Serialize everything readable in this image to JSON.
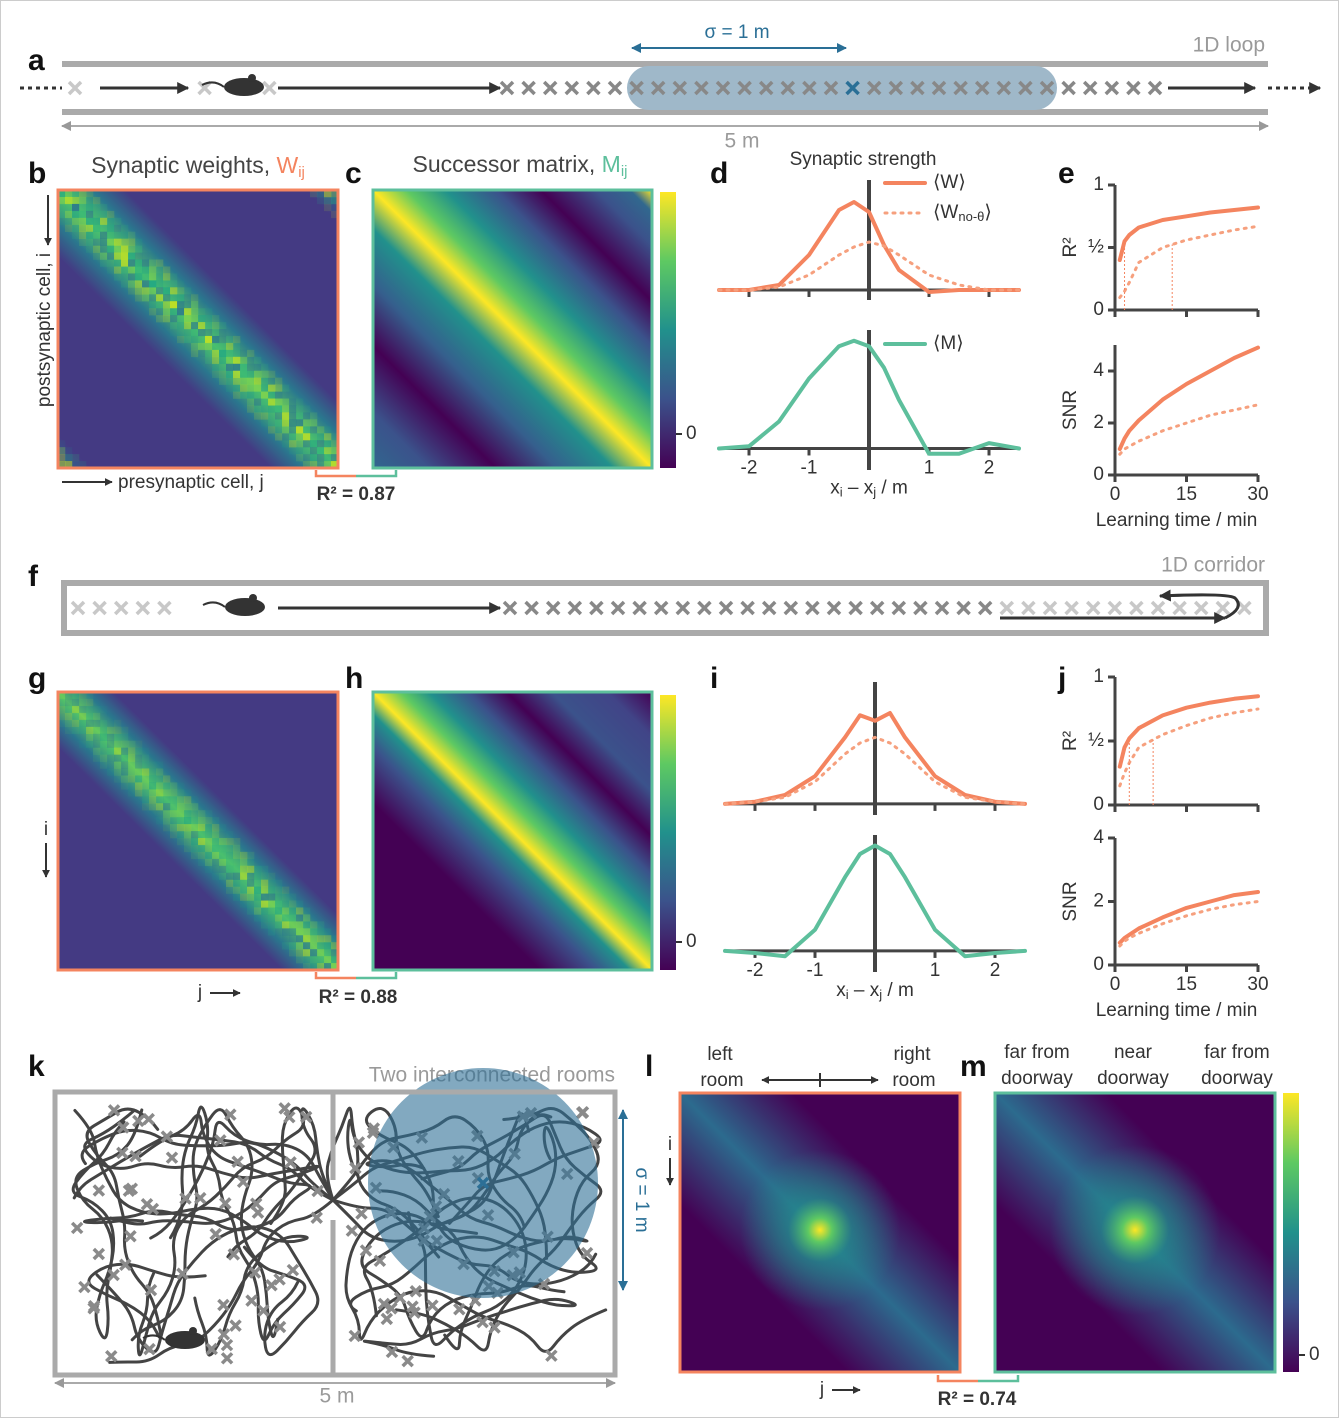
{
  "panels": {
    "a": {
      "label": "a",
      "title": "1D loop",
      "sigma": "σ = 1 m",
      "length": "5 m"
    },
    "b": {
      "label": "b",
      "title": [
        "Synaptic weights, ",
        "W",
        "ij"
      ],
      "ylabel": "postsynaptic cell, i",
      "xlabel": "presynaptic cell, j"
    },
    "c": {
      "label": "c",
      "title": [
        "Successor matrix, ",
        "M",
        "ij"
      ],
      "colorbar_tick": "0"
    },
    "bc": {
      "r2": "R² = 0.87"
    },
    "d": {
      "label": "d"
    },
    "e": {
      "label": "e"
    },
    "f": {
      "label": "f",
      "title": "1D corridor"
    },
    "g": {
      "label": "g",
      "ylabel": "i",
      "xlabel": "j"
    },
    "h": {
      "label": "h",
      "colorbar_tick": "0"
    },
    "gh": {
      "r2": "R² = 0.88"
    },
    "i": {
      "label": "i"
    },
    "j": {
      "label": "j"
    },
    "k": {
      "label": "k",
      "title": "Two interconnected rooms",
      "sigma": "σ = 1 m",
      "length": "5 m"
    },
    "l": {
      "label": "l",
      "left": [
        "left",
        "room"
      ],
      "right": [
        "right",
        "room"
      ],
      "ylabel": "i",
      "xlabel": "j"
    },
    "m": {
      "label": "m",
      "columns": [
        [
          "far from",
          "doorway"
        ],
        [
          "near",
          "doorway"
        ],
        [
          "far from",
          "doorway"
        ]
      ],
      "colorbar_tick": "0"
    },
    "lm": {
      "r2": "R² = 0.74"
    }
  },
  "chart_data": [
    {
      "type": "line",
      "title": "Synaptic strength",
      "x": [
        -2.5,
        -2,
        -1.5,
        -1,
        -0.5,
        -0.25,
        0,
        0.25,
        0.5,
        1,
        1.5,
        2,
        2.5
      ],
      "series": [
        {
          "name": [
            "⟨W⟩"
          ],
          "color": "#f4845f",
          "values": [
            0,
            0,
            0.05,
            0.35,
            0.8,
            0.88,
            0.78,
            0.45,
            0.2,
            -0.02,
            0,
            0,
            0
          ]
        },
        {
          "name": [
            "⟨W",
            "no-θ",
            "⟩"
          ],
          "color": "#f6a07e",
          "style": "dotted",
          "values": [
            0,
            0,
            0.03,
            0.15,
            0.35,
            0.43,
            0.48,
            0.44,
            0.35,
            0.15,
            0.05,
            0,
            0
          ]
        }
      ],
      "xlim": [
        -2.5,
        2.5
      ],
      "ylim": [
        -0.1,
        1.1
      ],
      "xticks": [
        -2,
        -1,
        1,
        2
      ],
      "zero_line": true
    },
    {
      "type": "line",
      "x": [
        -2.5,
        -2,
        -1.5,
        -1,
        -0.5,
        -0.25,
        0,
        0.25,
        0.5,
        1,
        1.5,
        2,
        2.5
      ],
      "series": [
        {
          "name": [
            "⟨M⟩"
          ],
          "color": "#5dbf9c",
          "values": [
            0,
            0.02,
            0.25,
            0.65,
            0.95,
            1.0,
            0.95,
            0.75,
            0.45,
            -0.05,
            -0.05,
            0.05,
            0
          ]
        }
      ],
      "xlim": [
        -2.5,
        2.5
      ],
      "ylim": [
        -0.2,
        1.1
      ],
      "xticks": [
        -2,
        -1,
        1,
        2
      ],
      "xlabel": [
        "x",
        "i",
        " – x",
        "j",
        " / m"
      ],
      "zero_line": true
    },
    {
      "type": "line",
      "x": [
        1,
        2,
        3,
        5,
        10,
        15,
        20,
        25,
        30
      ],
      "series": [
        {
          "color": "#f4845f",
          "values": [
            0.4,
            0.55,
            0.6,
            0.66,
            0.72,
            0.75,
            0.78,
            0.8,
            0.82
          ]
        },
        {
          "color": "#f6a07e",
          "style": "dotted",
          "values": [
            0.1,
            0.15,
            0.22,
            0.38,
            0.5,
            0.56,
            0.6,
            0.64,
            0.67
          ]
        }
      ],
      "xlim": [
        0,
        30
      ],
      "ylim": [
        0,
        1
      ],
      "xticks": [
        0,
        15,
        30
      ],
      "yticks": [
        0,
        {
          "value": 0.5,
          "label": "½"
        },
        1
      ],
      "ylabel": "R²",
      "markers": [
        2,
        12
      ]
    },
    {
      "type": "line",
      "x": [
        1,
        2,
        3,
        5,
        10,
        15,
        20,
        25,
        30
      ],
      "series": [
        {
          "color": "#f4845f",
          "values": [
            1.0,
            1.4,
            1.7,
            2.1,
            2.9,
            3.5,
            4.0,
            4.5,
            4.9
          ]
        },
        {
          "color": "#f6a07e",
          "style": "dotted",
          "values": [
            0.8,
            1.0,
            1.1,
            1.3,
            1.7,
            2.0,
            2.3,
            2.5,
            2.7
          ]
        }
      ],
      "xlim": [
        0,
        30
      ],
      "ylim": [
        0,
        5
      ],
      "xticks": [
        0,
        15,
        30
      ],
      "yticks": [
        0,
        2,
        4
      ],
      "ylabel": "SNR",
      "xlabel": [
        "Learning time / min"
      ]
    },
    {
      "type": "line",
      "x": [
        -2.5,
        -2,
        -1.5,
        -1,
        -0.5,
        -0.25,
        0,
        0.25,
        0.5,
        1,
        1.5,
        2,
        2.5
      ],
      "series": [
        {
          "color": "#f4845f",
          "values": [
            0,
            0.02,
            0.08,
            0.25,
            0.6,
            0.8,
            0.75,
            0.82,
            0.6,
            0.25,
            0.08,
            0.02,
            0
          ]
        },
        {
          "color": "#f6a07e",
          "style": "dotted",
          "values": [
            0,
            0.02,
            0.06,
            0.2,
            0.45,
            0.55,
            0.6,
            0.55,
            0.45,
            0.2,
            0.06,
            0.02,
            0
          ]
        }
      ],
      "xlim": [
        -2.5,
        2.5
      ],
      "ylim": [
        -0.1,
        1.1
      ],
      "xticks": [
        -2,
        -1,
        1,
        2
      ],
      "zero_line": true
    },
    {
      "type": "line",
      "x": [
        -2.5,
        -2,
        -1.5,
        -1,
        -0.5,
        -0.25,
        0,
        0.25,
        0.5,
        1,
        1.5,
        2,
        2.5
      ],
      "series": [
        {
          "color": "#5dbf9c",
          "values": [
            0,
            -0.02,
            -0.05,
            0.2,
            0.7,
            0.92,
            1.0,
            0.92,
            0.7,
            0.2,
            -0.05,
            -0.02,
            0
          ]
        }
      ],
      "xlim": [
        -2.5,
        2.5
      ],
      "ylim": [
        -0.2,
        1.1
      ],
      "xticks": [
        -2,
        -1,
        1,
        2
      ],
      "xlabel": [
        "x",
        "i",
        " – x",
        "j",
        " / m"
      ],
      "zero_line": true
    },
    {
      "type": "line",
      "x": [
        1,
        2,
        3,
        5,
        10,
        15,
        20,
        25,
        30
      ],
      "series": [
        {
          "color": "#f4845f",
          "values": [
            0.3,
            0.45,
            0.52,
            0.6,
            0.7,
            0.76,
            0.8,
            0.83,
            0.85
          ]
        },
        {
          "color": "#f6a07e",
          "style": "dotted",
          "values": [
            0.15,
            0.25,
            0.33,
            0.45,
            0.55,
            0.62,
            0.68,
            0.72,
            0.75
          ]
        }
      ],
      "xlim": [
        0,
        30
      ],
      "ylim": [
        0,
        1
      ],
      "xticks": [
        0,
        15,
        30
      ],
      "yticks": [
        0,
        {
          "value": 0.5,
          "label": "½"
        },
        1
      ],
      "ylabel": "R²",
      "markers": [
        3,
        8
      ]
    },
    {
      "type": "line",
      "x": [
        1,
        2,
        3,
        5,
        10,
        15,
        20,
        25,
        30
      ],
      "series": [
        {
          "color": "#f4845f",
          "values": [
            0.7,
            0.85,
            0.95,
            1.15,
            1.5,
            1.8,
            2.0,
            2.2,
            2.3
          ]
        },
        {
          "color": "#f6a07e",
          "style": "dotted",
          "values": [
            0.6,
            0.75,
            0.85,
            1.0,
            1.3,
            1.55,
            1.75,
            1.9,
            2.0
          ]
        }
      ],
      "xlim": [
        0,
        30
      ],
      "ylim": [
        0,
        4
      ],
      "xticks": [
        0,
        15,
        30
      ],
      "yticks": [
        0,
        2,
        4
      ],
      "ylabel": "SNR",
      "xlabel": [
        "Learning time / min"
      ]
    }
  ]
}
